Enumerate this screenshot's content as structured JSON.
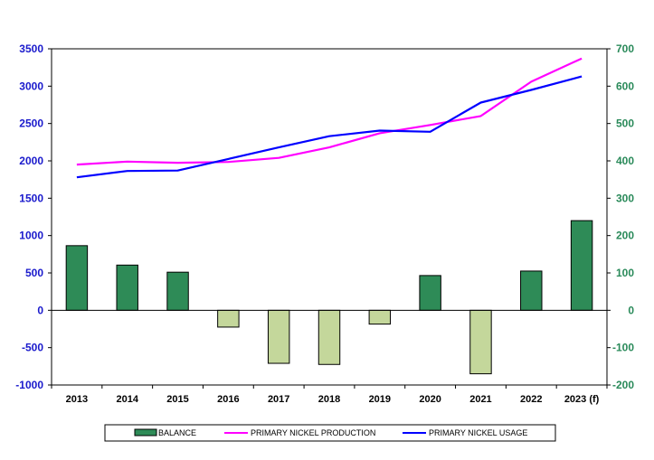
{
  "chart_data": {
    "type": "bar+line",
    "categories": [
      "2013",
      "2014",
      "2015",
      "2016",
      "2017",
      "2018",
      "2019",
      "2020",
      "2021",
      "2022",
      "2023 (f)"
    ],
    "bar_series": {
      "name": "BALANCE",
      "axis": "right",
      "values": [
        173,
        121,
        102,
        -45,
        -142,
        -145,
        -37,
        93,
        -170,
        105,
        240
      ],
      "color_positive": "#2e8b57",
      "color_negative": "#c4d79b"
    },
    "line_series": [
      {
        "name": "PRIMARY NICKEL PRODUCTION",
        "axis": "left",
        "color": "#ff00ff",
        "values": [
          1950,
          1990,
          1975,
          1985,
          2040,
          2180,
          2370,
          2480,
          2600,
          3060,
          3370
        ]
      },
      {
        "name": "PRIMARY NICKEL USAGE",
        "axis": "left",
        "color": "#0000ff",
        "values": [
          1780,
          1865,
          1870,
          2025,
          2180,
          2330,
          2405,
          2390,
          2780,
          2950,
          3130
        ]
      }
    ],
    "left_axis": {
      "min": -1000,
      "max": 3500,
      "step": 500,
      "ticks": [
        "3500",
        "3000",
        "2500",
        "2000",
        "1500",
        "1000",
        "500",
        "0",
        "-500",
        "-1000"
      ],
      "color": "#1a1acc"
    },
    "right_axis": {
      "min": -200,
      "max": 700,
      "step": 100,
      "ticks": [
        "700",
        "600",
        "500",
        "400",
        "300",
        "200",
        "100",
        "0",
        "-100",
        "-200"
      ],
      "color": "#2a8a5a"
    },
    "grid": false,
    "legend": {
      "placement": "bottom",
      "entries": [
        "BALANCE",
        "PRIMARY NICKEL PRODUCTION",
        "PRIMARY NICKEL USAGE"
      ]
    }
  }
}
